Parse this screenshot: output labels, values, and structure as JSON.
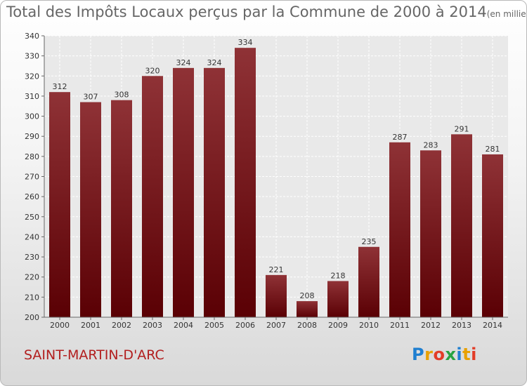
{
  "title": "Total des Impôts Locaux perçus par la Commune de 2000 à 2014",
  "unit": "(en milliers d'€)",
  "commune": "SAINT-MARTIN-D'ARC",
  "brand": {
    "letters": [
      "P",
      "r",
      "o",
      "x",
      "i",
      "t",
      "i"
    ],
    "colors": [
      "#1f7fd0",
      "#e8a000",
      "#e23d28",
      "#27a341",
      "#1f7fd0",
      "#e8a000",
      "#e23d28"
    ]
  },
  "chart_data": {
    "type": "bar",
    "title": "Total des Impôts Locaux perçus par la Commune de 2000 à 2014",
    "ylabel": "en milliers d'€",
    "categories": [
      "2000",
      "2001",
      "2002",
      "2003",
      "2004",
      "2005",
      "2006",
      "2007",
      "2008",
      "2009",
      "2010",
      "2011",
      "2012",
      "2013",
      "2014"
    ],
    "values": [
      312,
      307,
      308,
      320,
      324,
      324,
      334,
      221,
      208,
      218,
      235,
      287,
      283,
      291,
      281
    ],
    "ylim": [
      200,
      340
    ],
    "yticks": [
      200,
      210,
      220,
      230,
      240,
      250,
      260,
      270,
      280,
      290,
      300,
      310,
      320,
      330,
      340
    ],
    "grid": true,
    "bar_color": "#7a1f22"
  }
}
